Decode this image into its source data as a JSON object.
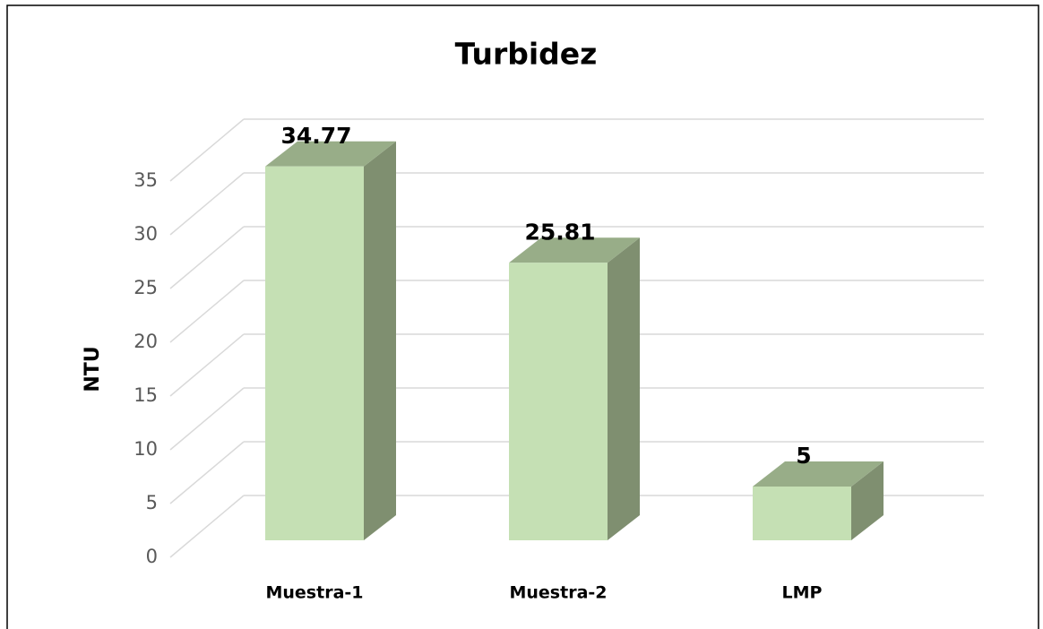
{
  "chart_data": {
    "type": "bar3d",
    "title": "Turbidez",
    "y_label": "NTU",
    "categories": [
      "Muestra-1",
      "Muestra-2",
      "LMP"
    ],
    "values": [
      34.77,
      25.81,
      5
    ],
    "color": "#c5e0b4",
    "ylim": [
      0,
      40
    ],
    "yticks": [
      0,
      5,
      10,
      15,
      20,
      25,
      30,
      35
    ],
    "grid": true
  }
}
